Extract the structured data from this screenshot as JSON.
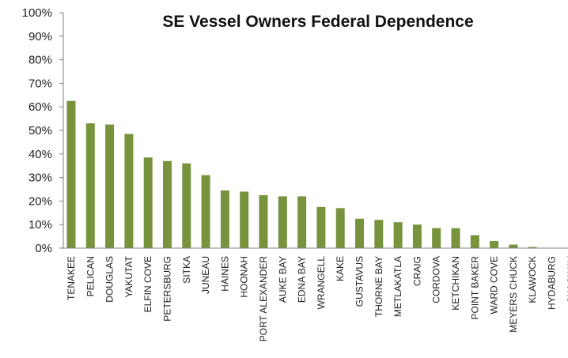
{
  "colors": {
    "bar": "#77933c",
    "axis": "#7f7f7f",
    "text": "#222222"
  },
  "chart_data": {
    "type": "bar",
    "title": "SE Vessel Owners Federal Dependence",
    "xlabel": "",
    "ylabel": "",
    "ylim": [
      0,
      100
    ],
    "y_tick_format": "percent",
    "y_ticks": [
      "0%",
      "10%",
      "20%",
      "30%",
      "40%",
      "50%",
      "60%",
      "70%",
      "80%",
      "90%",
      "100%"
    ],
    "grid": false,
    "legend": "none",
    "categories": [
      "TENAKEE",
      "PELICAN",
      "DOUGLAS",
      "YAKUTAT",
      "ELFIN COVE",
      "PETERSBURG",
      "SITKA",
      "JUNEAU",
      "HAINES",
      "HOONAH",
      "PORT ALEXANDER",
      "AUKE BAY",
      "EDNA BAY",
      "WRANGELL",
      "KAKE",
      "GUSTAVUS",
      "THORNE BAY",
      "METLAKATLA",
      "CRAIG",
      "CORDOVA",
      "KETCHIKAN",
      "POINT BAKER",
      "WARD COVE",
      "MEYERS CHUCK",
      "KLAWOCK",
      "HYDABURG",
      "SKAGWAY"
    ],
    "values": [
      62.5,
      53,
      52.5,
      48.5,
      38.5,
      37,
      36,
      31,
      24.5,
      24,
      22.5,
      22,
      22,
      17.5,
      17,
      12.5,
      12,
      11,
      10,
      8.5,
      8.5,
      5.5,
      3,
      1.5,
      0.5,
      0,
      0
    ]
  }
}
